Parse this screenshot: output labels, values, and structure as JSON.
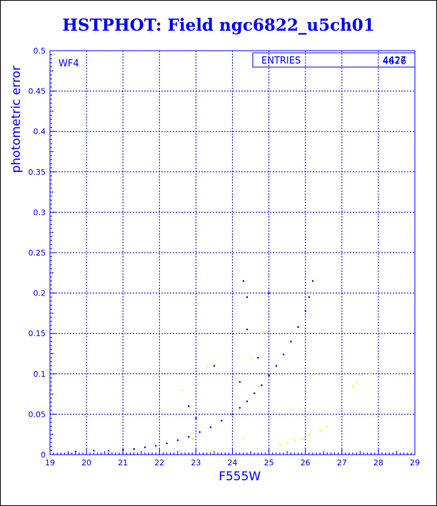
{
  "title": "HSTPHOT: Field ngc6822_u5ch01",
  "panel_label": "WF4",
  "stats_box": {
    "label": "ENTRIES",
    "value": "4427",
    "overprint": "4676"
  },
  "colors": {
    "text": "#0000ff",
    "main_series": "#0000ff",
    "outlier_series": "#ffff00",
    "grid": "#0000ff"
  },
  "chart_data": {
    "type": "scatter",
    "xlabel": "F555W",
    "ylabel": "photometric error",
    "xlim": [
      19,
      29
    ],
    "ylim": [
      0,
      0.5
    ],
    "xticks": [
      "19",
      "20",
      "21",
      "22",
      "23",
      "24",
      "25",
      "26",
      "27",
      "28",
      "29"
    ],
    "yticks": [
      "0",
      "0.05",
      "0.1",
      "0.15",
      "0.2",
      "0.25",
      "0.3",
      "0.35",
      "0.4",
      "0.45",
      "0.5"
    ],
    "grid": true,
    "series": [
      {
        "points": [
          [
            19.7,
            0.004
          ],
          [
            20.2,
            0.005
          ],
          [
            20.6,
            0.005
          ],
          [
            21.0,
            0.006
          ],
          [
            21.3,
            0.007
          ],
          [
            21.6,
            0.009
          ],
          [
            21.9,
            0.011
          ],
          [
            22.2,
            0.014
          ],
          [
            22.5,
            0.018
          ],
          [
            22.8,
            0.022
          ],
          [
            23.1,
            0.028
          ],
          [
            23.4,
            0.034
          ],
          [
            23.7,
            0.042
          ],
          [
            24.0,
            0.05
          ],
          [
            24.2,
            0.058
          ],
          [
            24.4,
            0.066
          ],
          [
            24.6,
            0.076
          ],
          [
            24.8,
            0.086
          ],
          [
            25.0,
            0.098
          ],
          [
            25.2,
            0.11
          ],
          [
            25.4,
            0.124
          ],
          [
            25.6,
            0.14
          ],
          [
            25.8,
            0.158
          ],
          [
            26.0,
            0.178
          ],
          [
            26.1,
            0.195
          ],
          [
            26.2,
            0.215
          ],
          [
            24.4,
            0.155
          ],
          [
            23.5,
            0.11
          ],
          [
            22.8,
            0.06
          ],
          [
            23.0,
            0.045
          ],
          [
            24.3,
            0.215
          ],
          [
            24.4,
            0.195
          ],
          [
            25.0,
            0.2
          ],
          [
            24.7,
            0.12
          ],
          [
            24.2,
            0.09
          ]
        ]
      },
      {
        "points": [
          [
            22.6,
            0.08
          ],
          [
            22.9,
            0.02
          ],
          [
            23.3,
            0.11
          ],
          [
            23.4,
            0.003
          ],
          [
            23.7,
            0.1
          ],
          [
            24.3,
            0.02
          ],
          [
            24.5,
            0.12
          ],
          [
            24.8,
            0.15
          ],
          [
            25.3,
            0.012
          ],
          [
            25.5,
            0.015
          ],
          [
            25.7,
            0.018
          ],
          [
            25.9,
            0.02
          ],
          [
            26.1,
            0.025
          ],
          [
            26.4,
            0.03
          ],
          [
            26.6,
            0.035
          ],
          [
            27.3,
            0.085
          ],
          [
            27.4,
            0.09
          ],
          [
            27.8,
            0.1
          ]
        ]
      }
    ]
  }
}
